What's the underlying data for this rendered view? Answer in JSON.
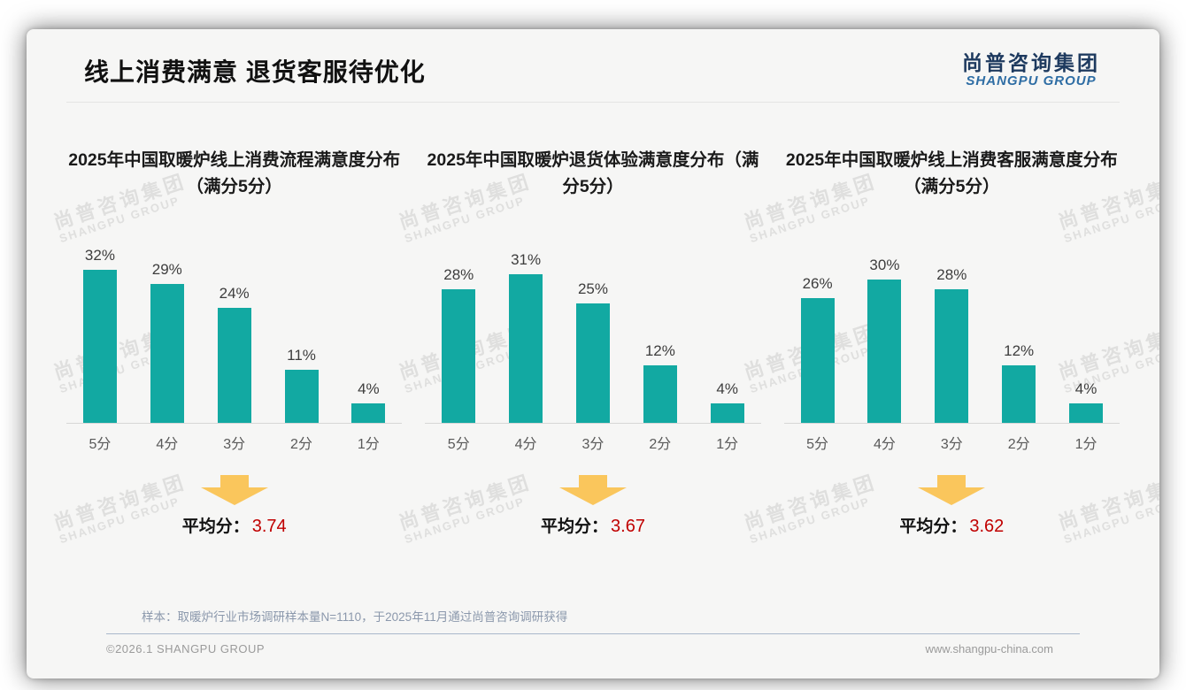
{
  "page": {
    "title": "线上消费满意 退货客服待优化",
    "logo": {
      "cn": "尚普咨询集团",
      "en": "SHANGPU GROUP"
    },
    "watermark_cn": "尚普咨询集团",
    "watermark_en": "SHANGPU GROUP",
    "note": "样本：取暖炉行业市场调研样本量N=1110，于2025年11月通过尚普咨询调研获得",
    "copyright": "©2026.1 SHANGPU GROUP",
    "website": "www.shangpu-china.com"
  },
  "colors": {
    "bar": "#12A9A2",
    "average_value": "#C00000",
    "arrow": "#FAC65C",
    "logo_cn": "#1E3A5F",
    "logo_en": "#2E6DA4"
  },
  "chart_data": [
    {
      "type": "bar",
      "title": "2025年中国取暖炉线上消费流程满意度分布（满分5分）",
      "categories": [
        "5分",
        "4分",
        "3分",
        "2分",
        "1分"
      ],
      "values": [
        32,
        29,
        24,
        11,
        4
      ],
      "unit": "%",
      "ylim": [
        0,
        35
      ],
      "grid": false,
      "average_label": "平均分：",
      "average": "3.74"
    },
    {
      "type": "bar",
      "title": "2025年中国取暖炉退货体验满意度分布（满分5分）",
      "categories": [
        "5分",
        "4分",
        "3分",
        "2分",
        "1分"
      ],
      "values": [
        28,
        31,
        25,
        12,
        4
      ],
      "unit": "%",
      "ylim": [
        0,
        35
      ],
      "grid": false,
      "average_label": "平均分：",
      "average": "3.67"
    },
    {
      "type": "bar",
      "title": "2025年中国取暖炉线上消费客服满意度分布（满分5分）",
      "categories": [
        "5分",
        "4分",
        "3分",
        "2分",
        "1分"
      ],
      "values": [
        26,
        30,
        28,
        12,
        4
      ],
      "unit": "%",
      "ylim": [
        0,
        35
      ],
      "grid": false,
      "average_label": "平均分：",
      "average": "3.62"
    }
  ]
}
